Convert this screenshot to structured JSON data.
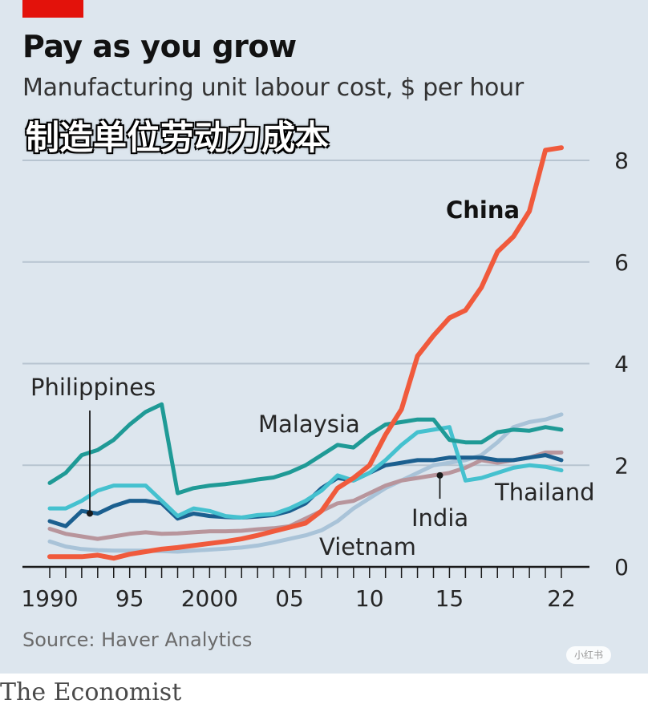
{
  "header": {
    "title": "Pay as you grow",
    "subtitle": "Manufacturing unit labour cost, $ per hour",
    "overlay_caption": "制造单位劳动力成本"
  },
  "footer": {
    "source": "Source: Haver Analytics",
    "brand": "The Economist",
    "watermark": "小红书"
  },
  "colors": {
    "background": "#dde6ee",
    "gridline": "#b7c4d0",
    "accent_red": "#e3120b",
    "China": "#f05a3c",
    "Malaysia": "#1f9a96",
    "Thailand": "#45c1cf",
    "Philippines": "#1b5f8f",
    "India": "#b8959c",
    "Vietnam": "#a9c3d8"
  },
  "chart_data": {
    "type": "line",
    "title": "Pay as you grow",
    "subtitle": "Manufacturing unit labour cost, $ per hour",
    "xlabel": "",
    "ylabel": "",
    "xlim": [
      1990,
      2022
    ],
    "ylim": [
      0,
      8
    ],
    "x_tick_labels": [
      "1990",
      "95",
      "2000",
      "05",
      "10",
      "15",
      "22"
    ],
    "x_tick_values": [
      1990,
      1995,
      2000,
      2005,
      2010,
      2015,
      2022
    ],
    "y_tick_values": [
      0,
      2,
      4,
      6,
      8
    ],
    "y_tick_labels": [
      "0",
      "2",
      "4",
      "6",
      "8"
    ],
    "grid": true,
    "y_axis_side": "right",
    "x": [
      1990,
      1991,
      1992,
      1993,
      1994,
      1995,
      1996,
      1997,
      1998,
      1999,
      2000,
      2001,
      2002,
      2003,
      2004,
      2005,
      2006,
      2007,
      2008,
      2009,
      2010,
      2011,
      2012,
      2013,
      2014,
      2015,
      2016,
      2017,
      2018,
      2019,
      2020,
      2021,
      2022
    ],
    "series": [
      {
        "name": "China",
        "values": [
          0.2,
          0.2,
          0.2,
          0.23,
          0.17,
          0.25,
          0.3,
          0.35,
          0.38,
          0.42,
          0.46,
          0.5,
          0.55,
          0.62,
          0.7,
          0.78,
          0.86,
          1.1,
          1.55,
          1.75,
          2.0,
          2.6,
          3.1,
          4.15,
          4.55,
          4.9,
          5.05,
          5.5,
          6.2,
          6.5,
          7.0,
          8.2,
          8.25
        ]
      },
      {
        "name": "Malaysia",
        "values": [
          1.65,
          1.85,
          2.2,
          2.3,
          2.5,
          2.8,
          3.05,
          3.2,
          1.45,
          1.55,
          1.6,
          1.63,
          1.67,
          1.72,
          1.76,
          1.86,
          2.0,
          2.2,
          2.4,
          2.35,
          2.6,
          2.8,
          2.85,
          2.9,
          2.9,
          2.5,
          2.45,
          2.45,
          2.65,
          2.7,
          2.68,
          2.75,
          2.7
        ]
      },
      {
        "name": "Thailand",
        "values": [
          1.15,
          1.15,
          1.3,
          1.5,
          1.6,
          1.6,
          1.6,
          1.3,
          1.0,
          1.15,
          1.1,
          1.0,
          0.97,
          1.02,
          1.04,
          1.15,
          1.3,
          1.5,
          1.8,
          1.7,
          1.85,
          2.1,
          2.4,
          2.65,
          2.7,
          2.75,
          1.7,
          1.75,
          1.85,
          1.95,
          2.0,
          1.97,
          1.9
        ]
      },
      {
        "name": "Philippines",
        "values": [
          0.9,
          0.8,
          1.1,
          1.05,
          1.2,
          1.3,
          1.3,
          1.25,
          0.95,
          1.05,
          1.0,
          0.98,
          0.97,
          0.99,
          1.02,
          1.1,
          1.25,
          1.55,
          1.75,
          1.7,
          1.85,
          2.0,
          2.05,
          2.1,
          2.1,
          2.15,
          2.15,
          2.15,
          2.1,
          2.1,
          2.15,
          2.2,
          2.1
        ]
      },
      {
        "name": "India",
        "values": [
          0.75,
          0.65,
          0.6,
          0.55,
          0.6,
          0.65,
          0.68,
          0.65,
          0.66,
          0.68,
          0.7,
          0.7,
          0.71,
          0.74,
          0.76,
          0.8,
          0.95,
          1.1,
          1.25,
          1.3,
          1.45,
          1.6,
          1.7,
          1.75,
          1.8,
          1.85,
          1.95,
          2.1,
          2.05,
          2.1,
          2.15,
          2.25,
          2.25
        ]
      },
      {
        "name": "Vietnam",
        "values": [
          0.5,
          0.4,
          0.35,
          0.33,
          0.32,
          0.32,
          0.32,
          0.31,
          0.3,
          0.32,
          0.34,
          0.36,
          0.38,
          0.42,
          0.48,
          0.55,
          0.62,
          0.72,
          0.9,
          1.15,
          1.35,
          1.55,
          1.7,
          1.85,
          2.0,
          2.05,
          2.1,
          2.2,
          2.45,
          2.75,
          2.85,
          2.9,
          3.0
        ]
      }
    ],
    "annotations": [
      {
        "text": "China",
        "series": "China",
        "bold": true
      },
      {
        "text": "Malaysia",
        "series": "Malaysia"
      },
      {
        "text": "Philippines",
        "series": "Philippines",
        "pointer_year": 1992.5
      },
      {
        "text": "Thailand",
        "series": "Thailand"
      },
      {
        "text": "India",
        "series": "India",
        "pointer_year": 2014.4
      },
      {
        "text": "Vietnam",
        "series": "Vietnam"
      }
    ]
  }
}
